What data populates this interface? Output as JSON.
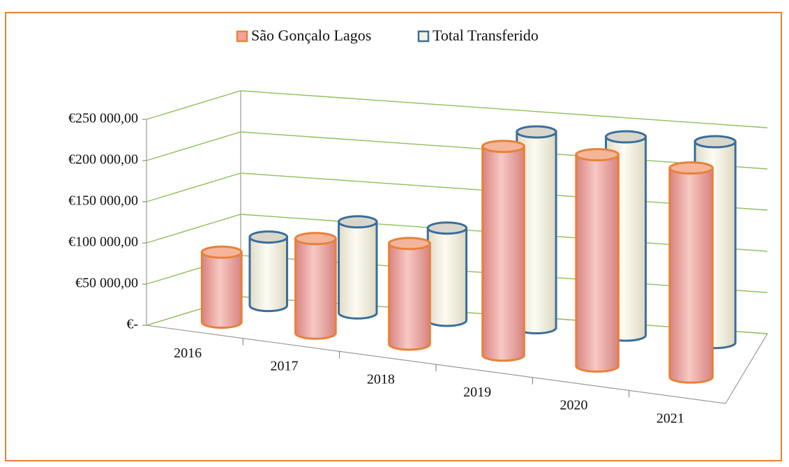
{
  "chart_data": {
    "type": "bar3d",
    "categories": [
      "2016",
      "2017",
      "2018",
      "2019",
      "2020",
      "2021"
    ],
    "series": [
      {
        "name": "São Gonçalo Lagos",
        "color": "#e8813a",
        "values": [
          75000,
          100000,
          105000,
          215000,
          215000,
          210000
        ]
      },
      {
        "name": "Total Transferido",
        "color": "#3b6e99",
        "values": [
          80000,
          105000,
          105000,
          220000,
          220000,
          220000
        ]
      }
    ],
    "ylim": [
      0,
      250000
    ],
    "yticks": [
      {
        "value": 0,
        "label": "€-"
      },
      {
        "value": 50000,
        "label": "€50 000,00"
      },
      {
        "value": 100000,
        "label": "€100 000,00"
      },
      {
        "value": 150000,
        "label": "€150 000,00"
      },
      {
        "value": 200000,
        "label": "€200 000,00"
      },
      {
        "value": 250000,
        "label": "€250 000,00"
      }
    ],
    "grid": true,
    "legend": "top"
  }
}
